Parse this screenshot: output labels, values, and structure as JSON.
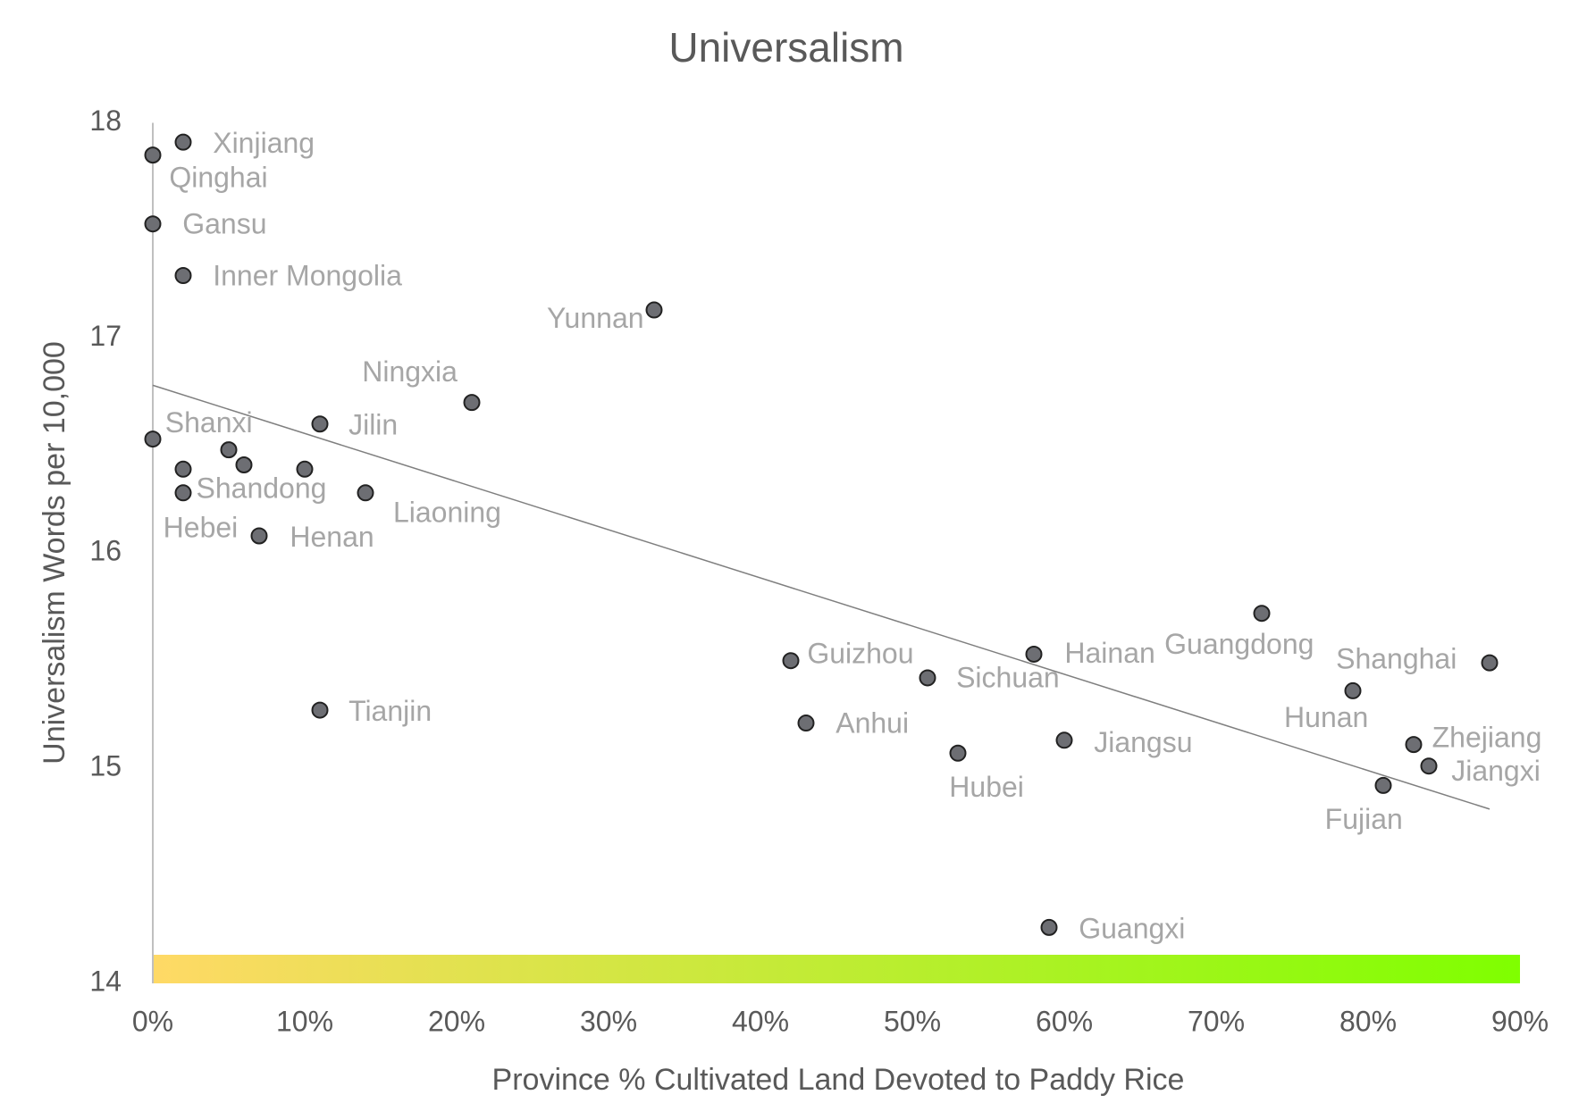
{
  "chart_data": {
    "type": "scatter",
    "title": "Universalism",
    "x_label": "Province % Cultivated Land Devoted to Paddy Rice",
    "y_label": "Universalism Words per 10,000",
    "point_labels": [
      "Xinjiang",
      "Qinghai",
      "Gansu",
      "Inner Mongolia",
      "Yunnan",
      "Ningxia",
      "Jilin",
      "Shanxi",
      null,
      null,
      null,
      "Shandong",
      "Hebei",
      "Liaoning",
      "Henan",
      "Tianjin",
      "Guizhou",
      "Anhui",
      "Sichuan",
      "Hubei",
      "Hainan",
      "Jiangsu",
      "Guangxi",
      "Guangdong",
      "Hunan",
      "Shanghai",
      "Zhejiang",
      "Jiangxi",
      "Fujian"
    ],
    "x": [
      2,
      0,
      0,
      2,
      33,
      21,
      11,
      0,
      5,
      2,
      10,
      6,
      2,
      14,
      7,
      11,
      42,
      43,
      51,
      53,
      58,
      60,
      59,
      73,
      79,
      88,
      83,
      84,
      81
    ],
    "values": [
      17.91,
      17.85,
      17.53,
      17.29,
      17.13,
      16.7,
      16.6,
      16.53,
      16.48,
      16.39,
      16.39,
      16.41,
      16.28,
      16.28,
      16.08,
      15.27,
      15.5,
      15.21,
      15.42,
      15.07,
      15.53,
      15.13,
      14.26,
      15.72,
      15.36,
      15.49,
      15.11,
      15.01,
      14.92
    ],
    "color": "#6d6e73",
    "trendline": {
      "x": [
        0,
        88
      ],
      "values": [
        16.78,
        14.81
      ],
      "color": "#7f7f7f"
    },
    "gradient_colors": [
      "#ffd966",
      "#7fff00"
    ],
    "xlim": [
      0,
      90
    ],
    "xticks": [
      {
        "value": 0,
        "label": "0%"
      },
      {
        "value": 10,
        "label": "10%"
      },
      {
        "value": 20,
        "label": "20%"
      },
      {
        "value": 30,
        "label": "30%"
      },
      {
        "value": 40,
        "label": "40%"
      },
      {
        "value": 50,
        "label": "50%"
      },
      {
        "value": 60,
        "label": "60%"
      },
      {
        "value": 70,
        "label": "70%"
      },
      {
        "value": 80,
        "label": "80%"
      },
      {
        "value": 90,
        "label": "90%"
      }
    ],
    "ylim": [
      14,
      18
    ],
    "yticks": [
      14,
      15,
      16,
      17,
      18
    ],
    "grid": false
  }
}
